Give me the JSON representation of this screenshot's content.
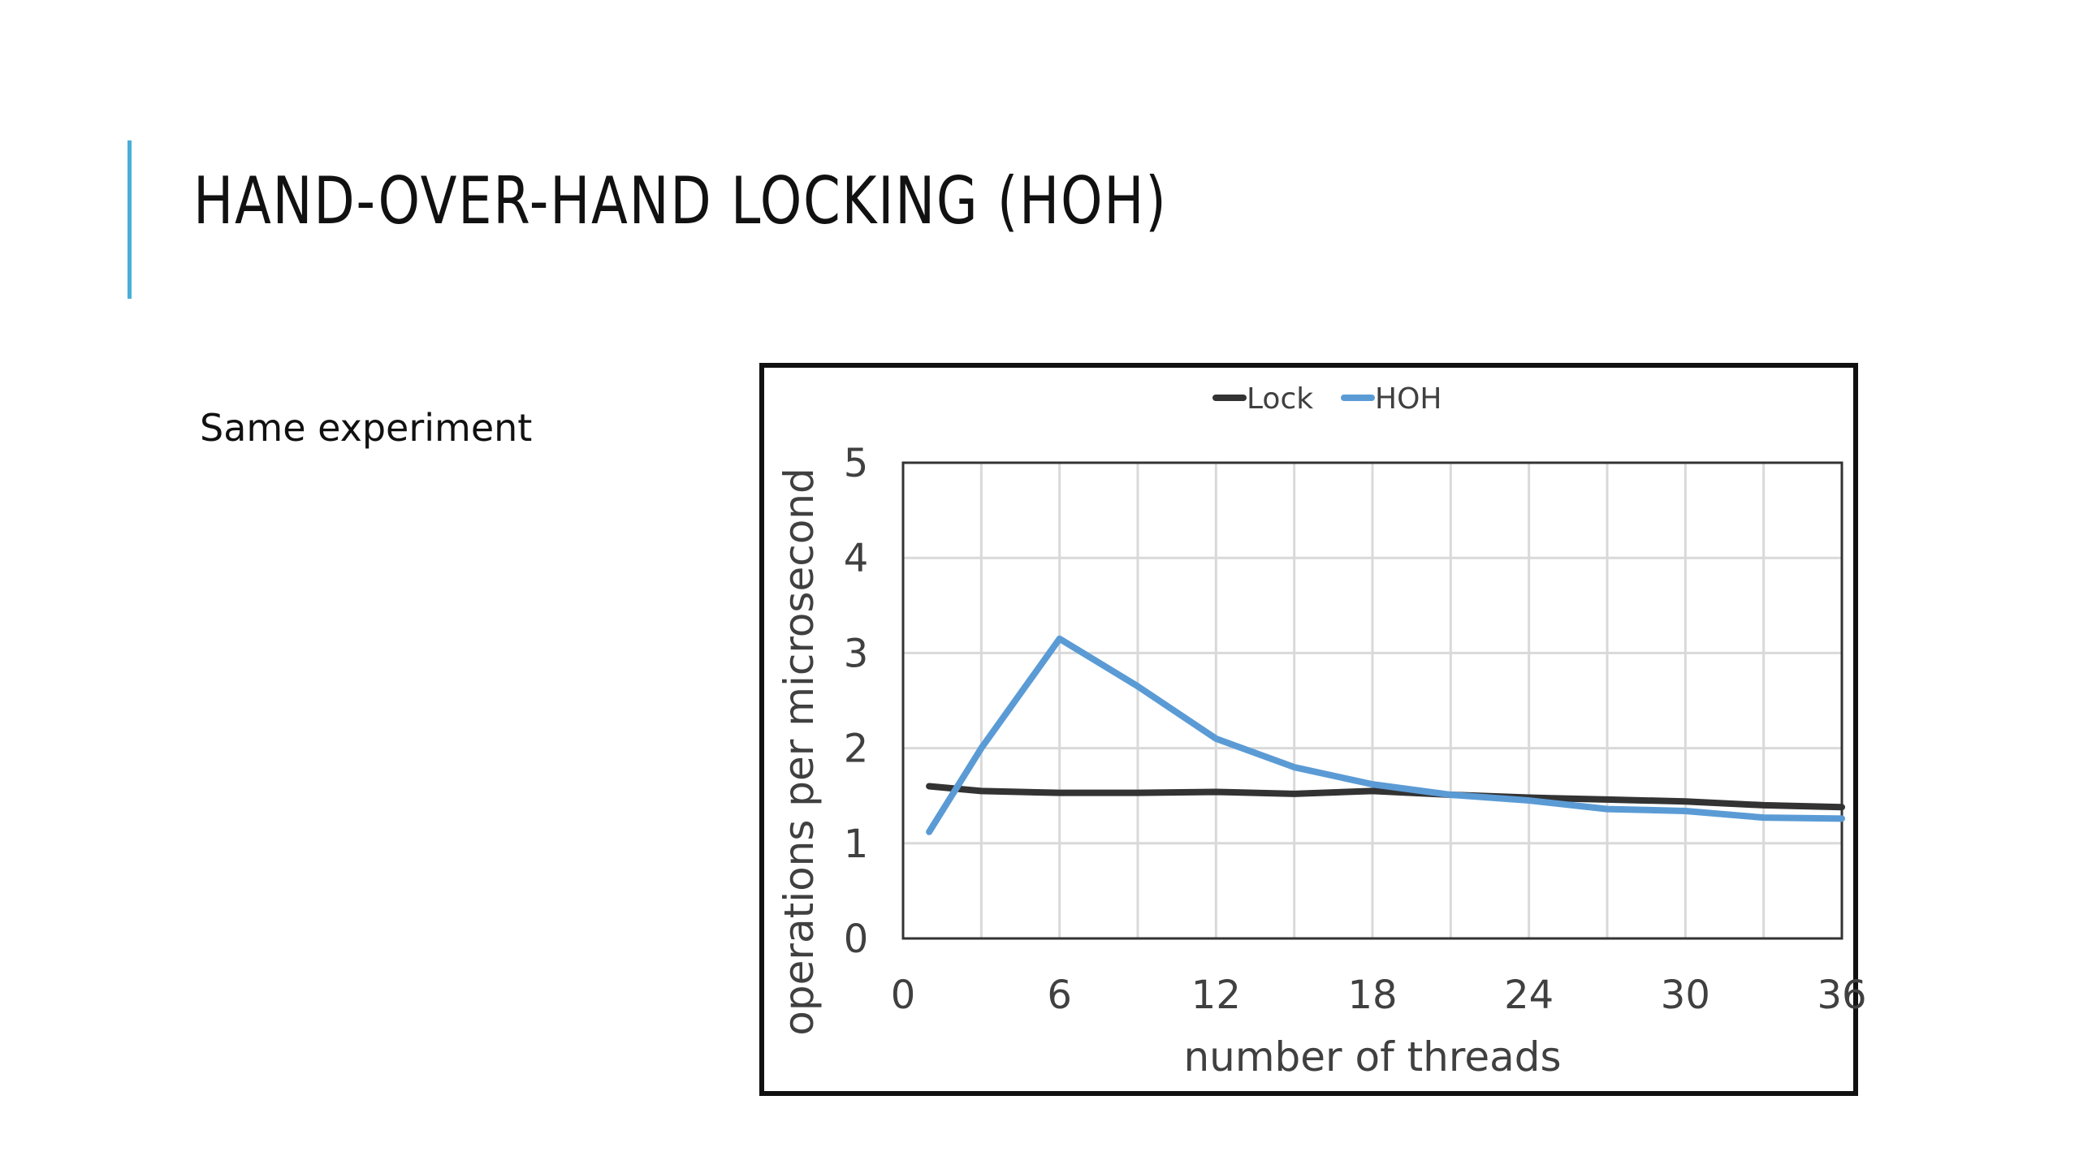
{
  "slide": {
    "title": "HAND-OVER-HAND LOCKING (HOH)",
    "bullet": "Same experiment",
    "accent_color": "#4aafd7"
  },
  "chart_data": {
    "type": "line",
    "xlabel": "number of threads",
    "ylabel": "operations per microsecond",
    "xlim": [
      0,
      36
    ],
    "ylim": [
      0,
      5
    ],
    "xticks": [
      0,
      6,
      12,
      18,
      24,
      30,
      36
    ],
    "yticks": [
      0,
      1,
      2,
      3,
      4,
      5
    ],
    "grid": true,
    "legend_position": "top-center",
    "series": [
      {
        "name": "Lock",
        "color": "#333333",
        "x": [
          1,
          3,
          6,
          9,
          12,
          15,
          18,
          21,
          24,
          27,
          30,
          33,
          36
        ],
        "y": [
          1.6,
          1.55,
          1.53,
          1.53,
          1.54,
          1.52,
          1.55,
          1.51,
          1.48,
          1.46,
          1.44,
          1.4,
          1.38
        ]
      },
      {
        "name": "HOH",
        "color": "#5b9bd5",
        "x": [
          1,
          3,
          6,
          9,
          12,
          15,
          18,
          21,
          24,
          27,
          30,
          33,
          36
        ],
        "y": [
          1.12,
          2.0,
          3.15,
          2.65,
          2.1,
          1.8,
          1.62,
          1.51,
          1.45,
          1.36,
          1.34,
          1.27,
          1.26
        ]
      }
    ]
  }
}
